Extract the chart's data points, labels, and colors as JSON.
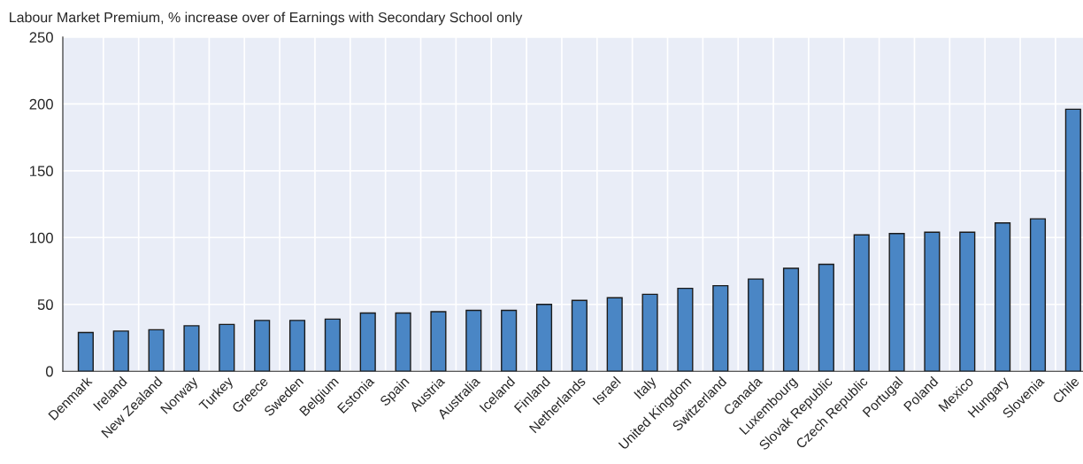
{
  "chart_data": {
    "type": "bar",
    "title": "Labour Market Premium, % increase over of Earnings with Secondary School only",
    "categories": [
      "Denmark",
      "Ireland",
      "New Zealand",
      "Norway",
      "Turkey",
      "Greece",
      "Sweden",
      "Belgium",
      "Estonia",
      "Spain",
      "Austria",
      "Australia",
      "Iceland",
      "Finland",
      "Netherlands",
      "Israel",
      "Italy",
      "United Kingdom",
      "Switzerland",
      "Canada",
      "Luxembourg",
      "Slovak Republic",
      "Czech Republic",
      "Portugal",
      "Poland",
      "Mexico",
      "Hungary",
      "Slovenia",
      "Chile"
    ],
    "values": [
      29,
      30,
      31,
      34,
      35,
      38,
      38,
      39,
      43.5,
      43.5,
      44.5,
      45.5,
      45.5,
      50,
      53,
      55,
      57.5,
      62,
      64,
      69,
      77,
      80,
      102,
      103,
      104,
      104,
      111,
      114,
      196
    ],
    "color": "#4a86c5",
    "ylim": [
      0,
      250
    ],
    "yticks": [
      0,
      50,
      100,
      150,
      200,
      250
    ],
    "grid": true
  }
}
